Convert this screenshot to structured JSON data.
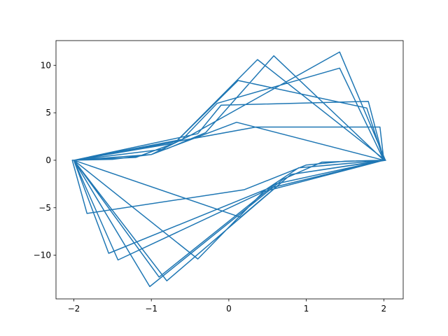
{
  "chart_data": {
    "type": "line",
    "x": [
      2.02,
      1.43,
      -0.5,
      -1,
      -1.5,
      -2.02,
      -1.83,
      0.2,
      1,
      1.5,
      2.02,
      0.37,
      -0.7,
      -1.2,
      -2,
      -1.43,
      0.4,
      0.9,
      2,
      0.58,
      -0.3,
      -0.8,
      -2,
      -1.02,
      0.7,
      1.2,
      2,
      1.43,
      -0.15,
      -0.6,
      -2,
      -0.8,
      0.8,
      2,
      1.8,
      -0.1,
      -0.4,
      -2,
      -1.55,
      0.5,
      2,
      1.78,
      0.12,
      -0.7,
      -2,
      -0.4,
      0.45,
      2,
      1.95,
      0.35,
      -2,
      -0.9,
      0.6,
      2,
      0.1,
      -1,
      -2,
      0.15,
      0.8,
      2.03
    ],
    "series": [
      {
        "color": "#1f77b4",
        "values": [
          0,
          11.4,
          2.6,
          0.6,
          0.1,
          0,
          -5.6,
          -3.1,
          -0.5,
          -0.1,
          0,
          10.6,
          1.8,
          0.3,
          0,
          -10.5,
          -3.5,
          -0.8,
          0,
          11,
          2.9,
          1.2,
          0,
          -13.3,
          -2,
          -0.2,
          0,
          9.7,
          6,
          2.2,
          0,
          -12.7,
          -1.5,
          0,
          6.2,
          5.8,
          2.8,
          0,
          -9.8,
          -3,
          0,
          5.5,
          8.4,
          1.8,
          0,
          -10.4,
          -3.3,
          0,
          3.5,
          3.5,
          0,
          -12.3,
          -2.5,
          0,
          4,
          0.6,
          0,
          -6,
          -1.5,
          0
        ]
      }
    ],
    "xlim": [
      -2.23,
      2.25
    ],
    "ylim": [
      -14.6,
      12.6
    ],
    "xticks": [
      {
        "value": -2,
        "label": "−2"
      },
      {
        "value": -1,
        "label": "−1"
      },
      0,
      1,
      2
    ],
    "yticks": [
      {
        "value": -10,
        "label": "−10"
      },
      {
        "value": -5,
        "label": "−5"
      },
      0,
      5,
      10
    ]
  }
}
